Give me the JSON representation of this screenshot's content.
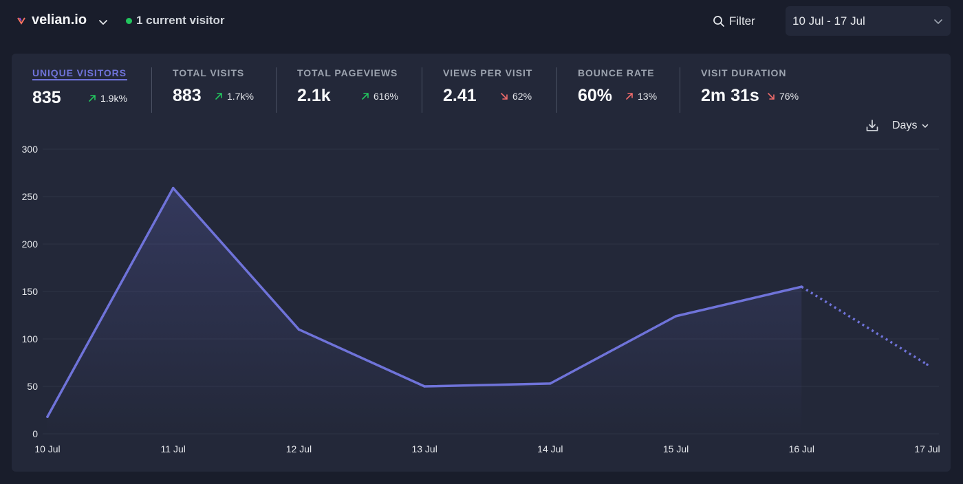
{
  "header": {
    "site_name": "velian.io",
    "current_visitors": "1 current visitor",
    "filter_label": "Filter",
    "date_range": "10 Jul - 17 Jul"
  },
  "colors": {
    "accent": "#6f73d9",
    "positive": "#22c55e",
    "negative": "#ef6b6b",
    "live": "#22c55e"
  },
  "metrics": [
    {
      "label": "UNIQUE VISITORS",
      "value": "835",
      "change": "1.9k%",
      "direction": "up",
      "sentiment": "positive"
    },
    {
      "label": "TOTAL VISITS",
      "value": "883",
      "change": "1.7k%",
      "direction": "up",
      "sentiment": "positive"
    },
    {
      "label": "TOTAL PAGEVIEWS",
      "value": "2.1k",
      "change": "616%",
      "direction": "up",
      "sentiment": "positive"
    },
    {
      "label": "VIEWS PER VISIT",
      "value": "2.41",
      "change": "62%",
      "direction": "down",
      "sentiment": "negative"
    },
    {
      "label": "BOUNCE RATE",
      "value": "60%",
      "change": "13%",
      "direction": "up",
      "sentiment": "negative"
    },
    {
      "label": "VISIT DURATION",
      "value": "2m 31s",
      "change": "76%",
      "direction": "down",
      "sentiment": "negative"
    }
  ],
  "chart_controls": {
    "interval_label": "Days",
    "download_icon": "download-icon"
  },
  "chart_data": {
    "type": "line",
    "categories": [
      "10 Jul",
      "11 Jul",
      "12 Jul",
      "13 Jul",
      "14 Jul",
      "15 Jul",
      "16 Jul",
      "17 Jul"
    ],
    "series": [
      {
        "values": [
          18,
          259,
          110,
          50,
          53,
          124,
          155,
          73
        ],
        "dashed_from_index": 6
      }
    ],
    "y_ticks": [
      0,
      50,
      100,
      150,
      200,
      250,
      300
    ],
    "ylim": [
      0,
      300
    ],
    "grid": true,
    "title": "",
    "xlabel": "",
    "ylabel": ""
  }
}
